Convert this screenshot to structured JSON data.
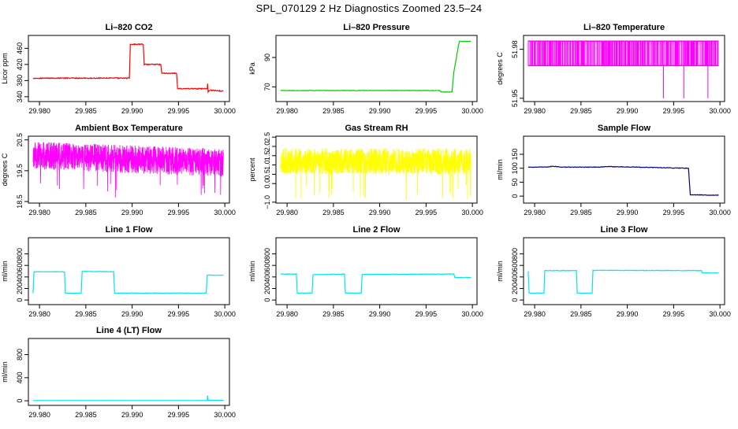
{
  "main_title": "SPL_070129  2 Hz Diagnostics Zoomed 23.5–24",
  "chart_data": [
    {
      "type": "line",
      "title": "Li–820 CO2",
      "ylabel": "Licor ppm",
      "color": "#ff0000",
      "xlim": [
        29.9788,
        30.0005
      ],
      "ylim": [
        328,
        492
      ],
      "xticks": [
        29.98,
        29.985,
        29.99,
        29.995,
        30.0
      ],
      "xticklabels": [
        "29.980",
        "29.985",
        "29.990",
        "29.995",
        "30.000"
      ],
      "yticks": [
        340,
        380,
        420,
        460
      ],
      "yticklabels": [
        "340",
        "380",
        "420",
        "460"
      ],
      "series": [
        {
          "name": "CO2",
          "noise": 1.2,
          "x": [
            29.9793,
            29.9897,
            29.9898,
            29.9912,
            29.9913,
            29.9931,
            29.9932,
            29.9948,
            29.9949,
            29.9981,
            29.99815,
            29.9982,
            29.9983,
            29.99985
          ],
          "y": [
            386,
            386,
            470,
            470,
            420,
            420,
            398,
            398,
            360,
            360,
            372,
            352,
            356,
            354
          ]
        }
      ]
    },
    {
      "type": "line",
      "title": "Li–820 Pressure",
      "ylabel": "kPa",
      "color": "#00cc00",
      "xlim": [
        29.9788,
        30.0005
      ],
      "ylim": [
        60,
        105
      ],
      "xticks": [
        29.98,
        29.985,
        29.99,
        29.995,
        30.0
      ],
      "xticklabels": [
        "29.980",
        "29.985",
        "29.990",
        "29.995",
        "30.000"
      ],
      "yticks": [
        70,
        90
      ],
      "yticklabels": [
        "70",
        "90"
      ],
      "series": [
        {
          "name": "Pressure",
          "noise": 0.15,
          "x": [
            29.9793,
            29.9965,
            29.9966,
            29.9978,
            29.998,
            29.9985,
            29.9986,
            29.99985
          ],
          "y": [
            67.5,
            67.5,
            66.5,
            66.5,
            80,
            98,
            101,
            101
          ]
        }
      ]
    },
    {
      "type": "spikes",
      "title": "Li–820 Temperature",
      "ylabel": "degrees C",
      "color": "#ff00ff",
      "xlim": [
        29.9788,
        30.0005
      ],
      "ylim": [
        51.948,
        51.9885
      ],
      "xticks": [
        29.98,
        29.985,
        29.99,
        29.995,
        30.0
      ],
      "xticklabels": [
        "29.980",
        "29.985",
        "29.990",
        "29.995",
        "30.000"
      ],
      "yticks": [
        51.95,
        51.98
      ],
      "yticklabels": [
        "51.95",
        "51.98"
      ],
      "base": 51.97,
      "high": 51.985,
      "low_spikes": [
        29.9939,
        29.9961,
        29.9987
      ],
      "low_value": 51.95,
      "x_range": [
        29.9793,
        29.99985
      ],
      "density": 0.6,
      "seed": 7
    },
    {
      "type": "noise",
      "title": "Ambient Box Temperature",
      "ylabel": "degrees C",
      "color": "#ff00ff",
      "xlim": [
        29.9788,
        30.0005
      ],
      "ylim": [
        18.45,
        20.62
      ],
      "xticks": [
        29.98,
        29.985,
        29.99,
        29.995,
        30.0
      ],
      "xticklabels": [
        "29.980",
        "29.985",
        "29.990",
        "29.995",
        "30.000"
      ],
      "yticks": [
        18.5,
        19.5,
        20.5
      ],
      "yticklabels": [
        "18.5",
        "19.5",
        "20.5"
      ],
      "x_range": [
        29.9793,
        29.99985
      ],
      "trend": [
        20.0,
        19.75
      ],
      "amplitude": 0.45,
      "spike_low": 18.55,
      "seed": 11
    },
    {
      "type": "noise",
      "title": "Gas Stream RH",
      "ylabel": "percent",
      "color": "#ffff00",
      "xlim": [
        29.9788,
        30.0005
      ],
      "ylim": [
        -1.05,
        2.55
      ],
      "xticks": [
        29.98,
        29.985,
        29.99,
        29.995,
        30.0
      ],
      "xticklabels": [
        "29.980",
        "29.985",
        "29.990",
        "29.995",
        "30.000"
      ],
      "yticks": [
        -1.0,
        0.0,
        0.5,
        1.0,
        1.5,
        2.0,
        2.5
      ],
      "yticklabels": [
        "−1.0",
        "0.0",
        "0.5",
        "1.0",
        "1.5",
        "2.0",
        "2.5"
      ],
      "x_range": [
        29.9793,
        29.99985
      ],
      "trend": [
        1.2,
        1.2
      ],
      "amplitude": 0.7,
      "spike_low": -0.9,
      "seed": 23
    },
    {
      "type": "line",
      "title": "Sample Flow",
      "ylabel": "ml/min",
      "color": "#00008b",
      "xlim": [
        29.9788,
        30.0005
      ],
      "ylim": [
        -25,
        215
      ],
      "xticks": [
        29.98,
        29.985,
        29.99,
        29.995,
        30.0
      ],
      "xticklabels": [
        "29.980",
        "29.985",
        "29.990",
        "29.995",
        "30.000"
      ],
      "yticks": [
        0,
        50,
        100,
        150
      ],
      "yticklabels": [
        "0",
        "50",
        "100",
        "150"
      ],
      "series": [
        {
          "name": "Sample",
          "noise": 1.0,
          "x": [
            29.9793,
            29.981,
            29.982,
            29.983,
            29.987,
            29.988,
            29.9966,
            29.9968,
            29.99985
          ],
          "y": [
            104,
            104,
            107,
            104,
            104,
            106,
            100,
            5,
            3
          ]
        }
      ]
    },
    {
      "type": "line",
      "title": "Line 1 Flow",
      "ylabel": "ml/min",
      "color": "#00e5ee",
      "xlim": [
        29.9788,
        30.0005
      ],
      "ylim": [
        -80,
        1080
      ],
      "xticks": [
        29.98,
        29.985,
        29.99,
        29.995,
        30.0
      ],
      "xticklabels": [
        "29.980",
        "29.985",
        "29.990",
        "29.995",
        "30.000"
      ],
      "yticks": [
        0,
        200,
        400,
        600,
        800
      ],
      "yticklabels": [
        "0",
        "200",
        "400",
        "600",
        "800"
      ],
      "series": [
        {
          "name": "Line 1",
          "noise": 4,
          "x": [
            29.9793,
            29.9794,
            29.9827,
            29.9828,
            29.9845,
            29.9846,
            29.988,
            29.9881,
            29.998,
            29.9981,
            29.99985
          ],
          "y": [
            120,
            490,
            490,
            120,
            120,
            495,
            490,
            120,
            120,
            430,
            430
          ]
        }
      ]
    },
    {
      "type": "line",
      "title": "Line 2 Flow",
      "ylabel": "ml/min",
      "color": "#00e5ee",
      "xlim": [
        29.9788,
        30.0005
      ],
      "ylim": [
        -80,
        1080
      ],
      "xticks": [
        29.98,
        29.985,
        29.99,
        29.995,
        30.0
      ],
      "xticklabels": [
        "29.980",
        "29.985",
        "29.990",
        "29.995",
        "30.000"
      ],
      "yticks": [
        0,
        200,
        400,
        600,
        800
      ],
      "yticklabels": [
        "0",
        "200",
        "400",
        "600",
        "800"
      ],
      "series": [
        {
          "name": "Line 2",
          "noise": 4,
          "x": [
            29.9793,
            29.981,
            29.9811,
            29.9827,
            29.9828,
            29.9862,
            29.9863,
            29.988,
            29.9881,
            29.998,
            29.9981,
            29.99985
          ],
          "y": [
            450,
            450,
            120,
            120,
            440,
            450,
            120,
            120,
            445,
            450,
            390,
            390
          ]
        }
      ]
    },
    {
      "type": "line",
      "title": "Line 3 Flow",
      "ylabel": "ml/min",
      "color": "#00e5ee",
      "xlim": [
        29.9788,
        30.0005
      ],
      "ylim": [
        -80,
        1080
      ],
      "xticks": [
        29.98,
        29.985,
        29.99,
        29.995,
        30.0
      ],
      "xticklabels": [
        "29.980",
        "29.985",
        "29.990",
        "29.995",
        "30.000"
      ],
      "yticks": [
        0,
        200,
        400,
        600,
        800
      ],
      "yticklabels": [
        "0",
        "200",
        "400",
        "600",
        "800"
      ],
      "series": [
        {
          "name": "Line 3",
          "noise": 4,
          "x": [
            29.9793,
            29.9794,
            29.981,
            29.9811,
            29.9845,
            29.9846,
            29.9862,
            29.9863,
            29.998,
            29.9981,
            29.99985
          ],
          "y": [
            500,
            120,
            120,
            510,
            510,
            120,
            120,
            515,
            510,
            470,
            470
          ]
        }
      ]
    },
    {
      "type": "line",
      "title": "Line 4 (LT) Flow",
      "ylabel": "ml/min",
      "color": "#00e5ee",
      "xlim": [
        29.9788,
        30.0005
      ],
      "ylim": [
        -80,
        1080
      ],
      "xticks": [
        29.98,
        29.985,
        29.99,
        29.995,
        30.0
      ],
      "xticklabels": [
        "29.980",
        "29.985",
        "29.990",
        "29.995",
        "30.000"
      ],
      "yticks": [
        0,
        400,
        800
      ],
      "yticklabels": [
        "0",
        "400",
        "800"
      ],
      "series": [
        {
          "name": "Line 4",
          "noise": 0.5,
          "x": [
            29.9793,
            29.9981,
            29.99815,
            29.9982,
            29.99985
          ],
          "y": [
            5,
            5,
            90,
            10,
            8
          ]
        }
      ]
    }
  ]
}
